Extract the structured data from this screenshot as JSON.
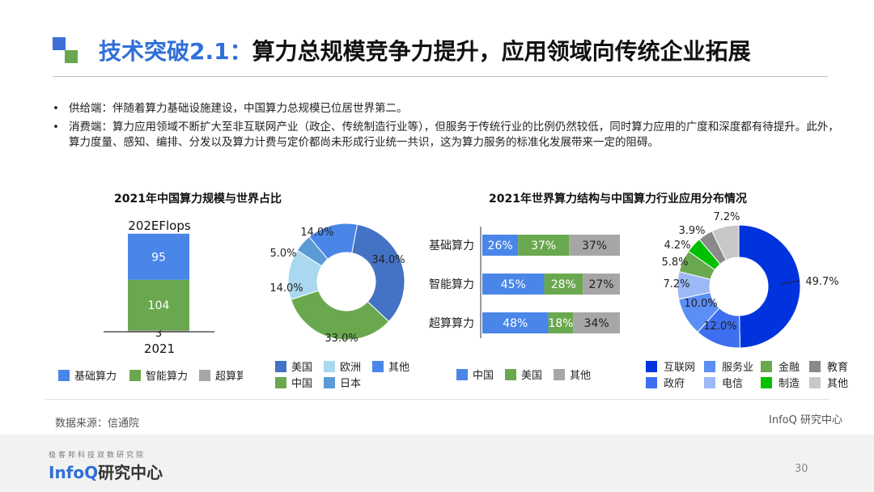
{
  "slide": {
    "title_prefix": "技术突破2.1：",
    "title_main": "算力总规模竞争力提升，应用领域向传统企业拓展",
    "bullets": [
      "供给端：伴随着算力基础设施建设，中国算力总规模已位居世界第二。",
      "消费端：算力应用领域不断扩大至非互联网产业（政企、传统制造行业等），但服务于传统行业的比例仍然较低，同时算力应用的广度和深度都有待提升。此外，算力度量、感知、编排、分发以及算力计费与定价都尚未形成行业统一共识，这为算力服务的标准化发展带来一定的阻碍。"
    ],
    "left_section_title": "2021年中国算力规模与世界占比",
    "right_section_title": "2021年世界算力结构与中国算力行业应用分布情况",
    "source": "数据来源：信通院",
    "brand_right": "InfoQ 研究中心",
    "brand_small": "极客邦科技双数研究院",
    "brand_big_a": "InfoQ",
    "brand_big_b": "研究中心",
    "page_number": "30",
    "colors": {
      "accent_blue": "#2f6fd8",
      "green": "#6aa84f",
      "gray": "#a6a6a6"
    }
  },
  "chart_data": [
    {
      "type": "bar",
      "stacked": true,
      "title": "",
      "unit_label": "202EFlops",
      "categories": [
        "2021"
      ],
      "series": [
        {
          "name": "超算算力",
          "values": [
            3
          ],
          "color": "#a6a6a6"
        },
        {
          "name": "智能算力",
          "values": [
            104
          ],
          "color": "#6aa84f"
        },
        {
          "name": "基础算力",
          "values": [
            95
          ],
          "color": "#4a86e8"
        }
      ],
      "legend": [
        "基础算力",
        "智能算力",
        "超算算力"
      ],
      "legend_position": "bottom"
    },
    {
      "type": "pie",
      "donut": true,
      "slices": [
        {
          "name": "美国",
          "value": 34.0,
          "label": "34.0%",
          "color": "#4472c4"
        },
        {
          "name": "中国",
          "value": 33.0,
          "label": "33.0%",
          "color": "#6aa84f"
        },
        {
          "name": "欧洲",
          "value": 14.0,
          "label": "14.0%",
          "color": "#a9d8f0"
        },
        {
          "name": "日本",
          "value": 5.0,
          "label": "5.0%",
          "color": "#5b9bd5"
        },
        {
          "name": "其他",
          "value": 14.0,
          "label": "14.0%",
          "color": "#4a86e8"
        }
      ],
      "legend": [
        "美国",
        "欧洲",
        "其他",
        "中国",
        "日本"
      ],
      "legend_position": "bottom"
    },
    {
      "type": "bar",
      "orientation": "horizontal",
      "stacked_percent": true,
      "categories": [
        "基础算力",
        "智能算力",
        "超算算力"
      ],
      "series": [
        {
          "name": "中国",
          "values": [
            26,
            45,
            48
          ],
          "labels": [
            "26%",
            "45%",
            "48%"
          ],
          "color": "#4a86e8"
        },
        {
          "name": "美国",
          "values": [
            37,
            28,
            18
          ],
          "labels": [
            "37%",
            "28%",
            "18%"
          ],
          "color": "#6aa84f"
        },
        {
          "name": "其他",
          "values": [
            37,
            27,
            34
          ],
          "labels": [
            "37%",
            "27%",
            "34%"
          ],
          "color": "#a6a6a6"
        }
      ],
      "legend_position": "bottom"
    },
    {
      "type": "pie",
      "donut": true,
      "slices": [
        {
          "name": "互联网",
          "value": 49.7,
          "label": "49.7%",
          "color": "#0033dd"
        },
        {
          "name": "政府",
          "value": 12.0,
          "label": "12.0%",
          "color": "#3d6ff0"
        },
        {
          "name": "服务业",
          "value": 10.0,
          "label": "10.0%",
          "color": "#5b8ff5"
        },
        {
          "name": "电信",
          "value": 7.2,
          "label": "7.2%",
          "color": "#9db8f7"
        },
        {
          "name": "金融",
          "value": 5.8,
          "label": "5.8%",
          "color": "#6aa84f"
        },
        {
          "name": "制造",
          "value": 4.2,
          "label": "4.2%",
          "color": "#00c000"
        },
        {
          "name": "教育",
          "value": 3.9,
          "label": "3.9%",
          "color": "#8a8a8a"
        },
        {
          "name": "其他",
          "value": 7.2,
          "label": "7.2%",
          "color": "#c8c8c8"
        }
      ],
      "legend": [
        "互联网",
        "服务业",
        "金融",
        "教育",
        "政府",
        "电信",
        "制造",
        "其他"
      ],
      "legend_position": "bottom"
    }
  ]
}
